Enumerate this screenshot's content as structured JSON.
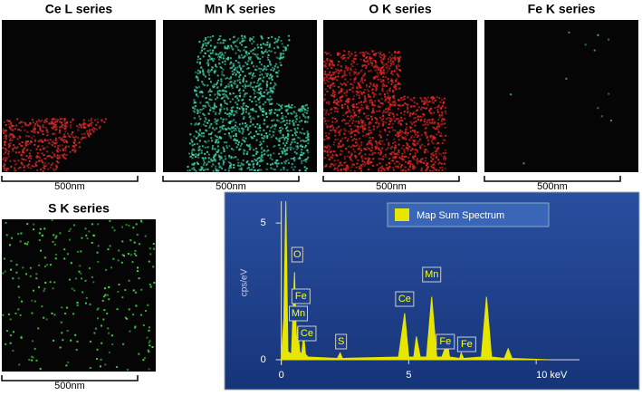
{
  "panels": [
    {
      "title": "Ce L series",
      "scale": "500nm"
    },
    {
      "title": "Mn K series",
      "scale": "500nm"
    },
    {
      "title": "O K series",
      "scale": "500nm"
    },
    {
      "title": "Fe K series",
      "scale": "500nm"
    },
    {
      "title": "S K series",
      "scale": "500nm"
    }
  ],
  "chart_data": {
    "type": "area",
    "ylabel": "cps/eV",
    "series": [
      {
        "name": "Map Sum Spectrum",
        "color": "#e6e600",
        "x": [
          0,
          0.1,
          0.18,
          0.26,
          0.4,
          0.52,
          0.6,
          0.64,
          0.72,
          0.8,
          0.88,
          0.95,
          1.05,
          2.2,
          2.31,
          2.4,
          4.6,
          4.84,
          5.0,
          5.2,
          5.3,
          5.45,
          5.7,
          5.9,
          6.1,
          6.3,
          6.4,
          6.5,
          6.6,
          7.0,
          7.06,
          7.15,
          7.85,
          8.05,
          8.25,
          8.75,
          8.9,
          9.05,
          10.5
        ],
        "values": [
          0,
          1.5,
          5.8,
          0.3,
          0.2,
          3.2,
          0.4,
          1.2,
          0.3,
          0.2,
          0.9,
          0.2,
          0.1,
          0.05,
          0.25,
          0.05,
          0.1,
          1.7,
          0.1,
          0.1,
          0.85,
          0.1,
          0.1,
          2.3,
          0.1,
          0.1,
          0.35,
          0.8,
          0.1,
          0.05,
          0.25,
          0.05,
          0.1,
          2.3,
          0.1,
          0.05,
          0.4,
          0.05,
          0
        ]
      }
    ],
    "xlim": [
      -0.2,
      11.7
    ],
    "ylim": [
      -0.2,
      5.8
    ],
    "xticks": [
      0,
      5,
      {
        "value": 10,
        "label": "10 keV"
      }
    ],
    "yticks": [
      0,
      5
    ],
    "annotations": [
      {
        "text": "O",
        "x": 0.52
      },
      {
        "text": "Fe",
        "x": 0.7
      },
      {
        "text": "Mn",
        "x": 0.6
      },
      {
        "text": "Ce",
        "x": 0.9
      },
      {
        "text": "S",
        "x": 2.31
      },
      {
        "text": "Ce",
        "x": 4.84
      },
      {
        "text": "Mn",
        "x": 5.9
      },
      {
        "text": "Fe",
        "x": 6.4
      },
      {
        "text": "Fe",
        "x": 7.06
      }
    ]
  }
}
